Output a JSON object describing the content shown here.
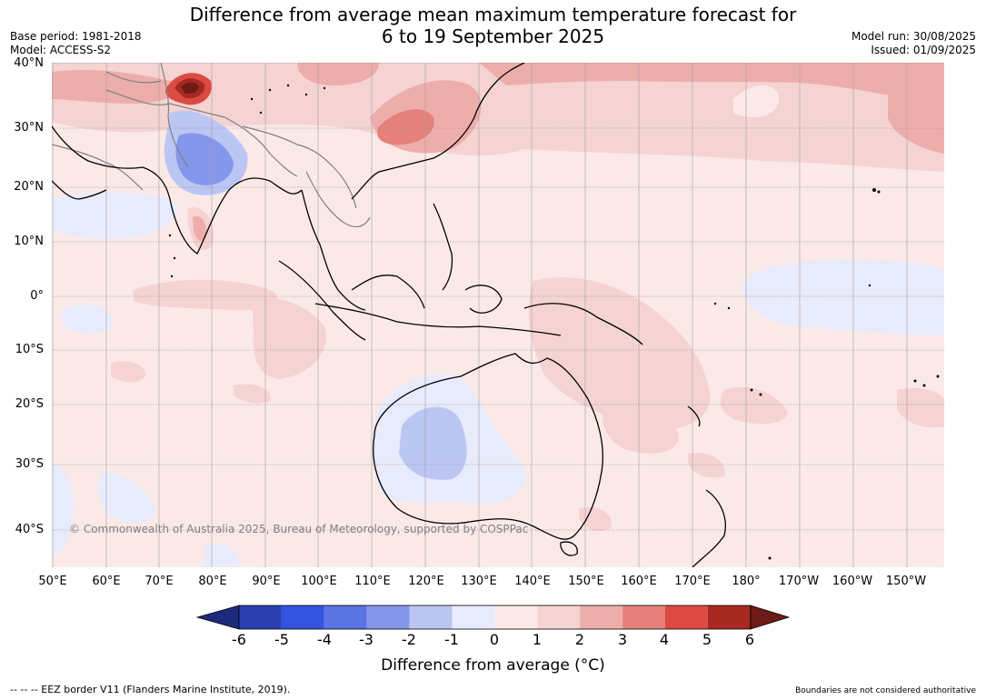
{
  "header": {
    "title_line1": "Difference from average mean maximum temperature forecast for",
    "title_line2": "6 to 19 September 2025",
    "base_period": "Base period: 1981-2018",
    "model": "Model: ACCESS-S2",
    "model_run": "Model run: 30/08/2025",
    "issued": "Issued: 01/09/2025"
  },
  "map": {
    "copyright": "© Commonwealth of Australia 2025, Bureau of Meteorology, supported by COSPPac",
    "lat_labels": [
      "40°N",
      "30°N",
      "20°N",
      "10°N",
      "0°",
      "10°S",
      "20°S",
      "30°S",
      "40°S"
    ],
    "lon_labels": [
      "50°E",
      "60°E",
      "70°E",
      "80°E",
      "90°E",
      "100°E",
      "110°E",
      "120°E",
      "130°E",
      "140°E",
      "150°E",
      "160°E",
      "170°E",
      "180°",
      "170°W",
      "160°W",
      "150°W"
    ],
    "land_color": "#000000",
    "border_color": "#808080"
  },
  "colorbar": {
    "ticks": [
      "-6",
      "-5",
      "-4",
      "-3",
      "-2",
      "-1",
      "0",
      "1",
      "2",
      "3",
      "4",
      "5",
      "6"
    ],
    "colors": [
      "#1c2a7c",
      "#2a40b0",
      "#3353e0",
      "#5b74e3",
      "#8597ea",
      "#bcc6f3",
      "#e8ebfb",
      "#fbe9e8",
      "#f5d3d2",
      "#edaeab",
      "#e5807b",
      "#db4b41",
      "#a82922",
      "#6e1a16"
    ],
    "label": "Difference from average (°C)"
  },
  "footer": {
    "eez": "--  --  -- EEZ border V11 (Flanders Marine Institute, 2019).",
    "disclaimer": "Boundaries are not considered authoritative"
  }
}
